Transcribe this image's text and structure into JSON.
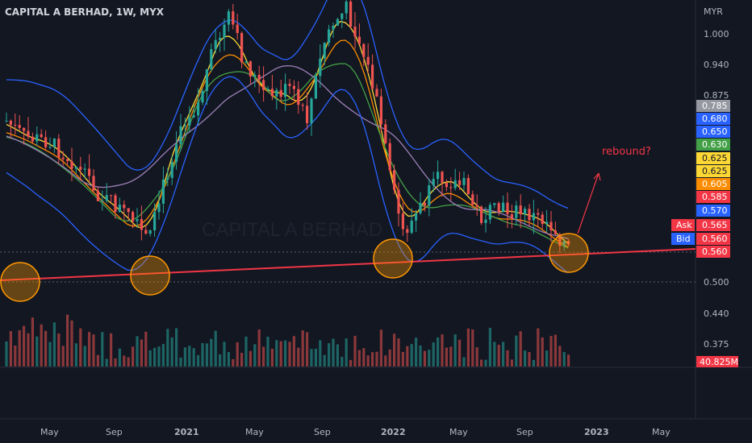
{
  "header": {
    "title": "CAPITAL A BERHAD, 1W, MYX"
  },
  "watermark": "CAPITAL A BERHAD",
  "currency": "MYR",
  "annotation": "rebound?",
  "chart_data": {
    "type": "candlestick",
    "symbol": "CAPITAL A BERHAD",
    "interval": "1W",
    "exchange": "MYX",
    "y_ticks": [
      "1.000",
      "0.940",
      "0.875",
      "0.500",
      "0.440",
      "0.375"
    ],
    "x_ticks": [
      "May",
      "Sep",
      "2021",
      "May",
      "Sep",
      "2022",
      "May",
      "Sep",
      "2023",
      "May"
    ],
    "last_price": "0.560",
    "volume_label": "40.825M",
    "price_tags": [
      {
        "value": "0.785",
        "color": "#9598a1"
      },
      {
        "value": "0.680",
        "color": "#2962ff"
      },
      {
        "value": "0.650",
        "color": "#2962ff"
      },
      {
        "value": "0.630",
        "color": "#43a047"
      },
      {
        "value": "0.625",
        "color": "#fdd835"
      },
      {
        "value": "0.625",
        "color": "#fdd835"
      },
      {
        "value": "0.605",
        "color": "#fb8c00"
      },
      {
        "value": "0.585",
        "color": "#f23645"
      },
      {
        "value": "0.570",
        "color": "#2962ff"
      },
      {
        "value": "0.565",
        "color": "#f23645",
        "label": "Ask"
      },
      {
        "value": "0.560",
        "color": "#f23645",
        "label": "Bid"
      },
      {
        "value": "0.560",
        "color": "#f23645"
      }
    ],
    "support_circles": 4,
    "trendline": "rising support",
    "colors": {
      "up": "#26a69a",
      "down": "#ef5350",
      "bg": "#131722"
    }
  }
}
